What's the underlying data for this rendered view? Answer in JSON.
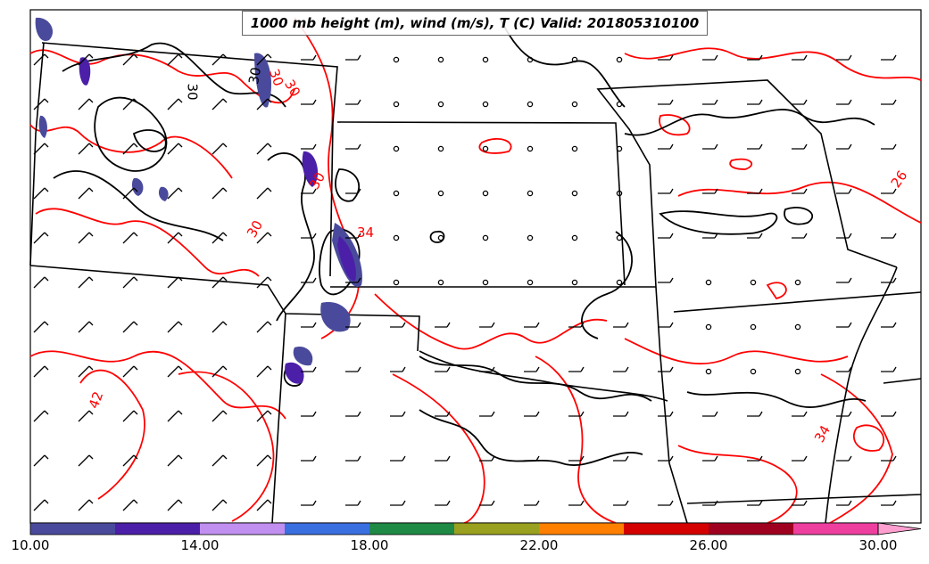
{
  "title": "1000 mb height (m), wind (m/s), T (C) Valid: 201805310100",
  "contour_labels": {
    "temperature": [
      "30",
      "30",
      "34",
      "30",
      "42",
      "26",
      "34",
      "30"
    ],
    "height": [
      "30",
      "30"
    ]
  },
  "colorbar": {
    "ticks": [
      "10.00",
      "14.00",
      "18.00",
      "22.00",
      "26.00",
      "30.00"
    ],
    "range": [
      10,
      31
    ],
    "colors": [
      "#4a4a9c",
      "#4b1fa8",
      "#c08ff0",
      "#3a6fe0",
      "#1f8a45",
      "#9aa01f",
      "#ff7f00",
      "#d40000",
      "#a0001f",
      "#ee3f9f",
      "#ff9fd0"
    ]
  },
  "colors": {
    "temperature_contour": "#ff0000",
    "height_contour": "#000000",
    "boundaries": "#000000",
    "barbs": "#000000"
  }
}
